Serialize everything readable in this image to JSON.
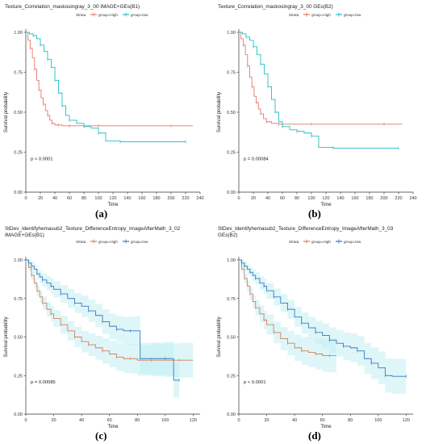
{
  "chart_data": [
    {
      "type": "line",
      "panel_label": "(a)",
      "title": "Texture_Correlation_maskosingray_3_00 IMAGE+GEs(B1)",
      "xlabel": "Time",
      "ylabel": "Survival probability",
      "legend_title": "Strata",
      "xlim": [
        0,
        240
      ],
      "ylim": [
        0,
        1
      ],
      "xticks": [
        "0",
        "20",
        "40",
        "60",
        "80",
        "100",
        "120",
        "140",
        "160",
        "180",
        "200",
        "220",
        "240"
      ],
      "yticks": [
        "0.00",
        "0.25",
        "0.50",
        "0.75",
        "1.00"
      ],
      "annotation": "p < 0.0001",
      "confidence_band": false,
      "series": [
        {
          "name": "group=High",
          "color": "#e8766c",
          "x": [
            0,
            3,
            6,
            9,
            12,
            15,
            18,
            21,
            24,
            27,
            30,
            33,
            36,
            40,
            45,
            50,
            60,
            75,
            100,
            150,
            200,
            230
          ],
          "y": [
            1.0,
            0.95,
            0.9,
            0.84,
            0.77,
            0.7,
            0.64,
            0.59,
            0.55,
            0.51,
            0.48,
            0.45,
            0.43,
            0.42,
            0.42,
            0.415,
            0.415,
            0.415,
            0.415,
            0.415,
            0.415,
            0.415
          ]
        },
        {
          "name": "group=low",
          "color": "#22bec5",
          "x": [
            0,
            5,
            10,
            15,
            20,
            25,
            30,
            35,
            40,
            45,
            50,
            55,
            60,
            70,
            80,
            90,
            100,
            110,
            130,
            180,
            220
          ],
          "y": [
            1.0,
            0.99,
            0.98,
            0.96,
            0.92,
            0.88,
            0.83,
            0.78,
            0.7,
            0.62,
            0.54,
            0.48,
            0.45,
            0.43,
            0.41,
            0.4,
            0.37,
            0.32,
            0.315,
            0.315,
            0.315
          ]
        }
      ]
    },
    {
      "type": "line",
      "panel_label": "(b)",
      "title": "Texture_Correlation_maskosingray_3_00 GEs(B2)",
      "xlabel": "Time",
      "ylabel": "Survival probability",
      "legend_title": "Strata",
      "xlim": [
        0,
        240
      ],
      "ylim": [
        0,
        1
      ],
      "xticks": [
        "0",
        "20",
        "40",
        "60",
        "80",
        "100",
        "120",
        "140",
        "160",
        "180",
        "200",
        "220",
        "240"
      ],
      "yticks": [
        "0.00",
        "0.25",
        "0.50",
        "0.75",
        "1.00"
      ],
      "annotation": "p = 0.00084",
      "confidence_band": false,
      "series": [
        {
          "name": "group=High",
          "color": "#e8766c",
          "x": [
            0,
            3,
            6,
            9,
            12,
            15,
            18,
            21,
            24,
            27,
            30,
            34,
            38,
            45,
            55,
            70,
            100,
            150,
            200,
            225
          ],
          "y": [
            1.0,
            0.96,
            0.92,
            0.86,
            0.79,
            0.72,
            0.66,
            0.6,
            0.56,
            0.52,
            0.49,
            0.46,
            0.44,
            0.43,
            0.425,
            0.425,
            0.425,
            0.425,
            0.425,
            0.425
          ]
        },
        {
          "name": "group=low",
          "color": "#22bec5",
          "x": [
            0,
            5,
            10,
            15,
            20,
            25,
            30,
            35,
            40,
            45,
            50,
            55,
            60,
            70,
            80,
            90,
            100,
            110,
            130,
            180,
            220
          ],
          "y": [
            1.0,
            0.99,
            0.97,
            0.95,
            0.91,
            0.86,
            0.8,
            0.74,
            0.66,
            0.58,
            0.5,
            0.44,
            0.41,
            0.39,
            0.38,
            0.37,
            0.35,
            0.28,
            0.275,
            0.275,
            0.275
          ]
        }
      ]
    },
    {
      "type": "line",
      "panel_label": "(c)",
      "title": "StDev_Identifyhemasub2_Texture_DifferenceEntropy_ImageAfterMath_3_02 IMAGE+GEs(B1)",
      "title_lines": [
        "StDev_Identifyhemasub2_Texture_DifferenceEntropy_ImageAfterMath_3_02",
        "IMAGE+GEs(B1)"
      ],
      "xlabel": "Time",
      "ylabel": "Survival probability",
      "legend_title": "Strata",
      "xlim": [
        0,
        125
      ],
      "ylim": [
        0,
        1
      ],
      "xticks": [
        "0",
        "20",
        "40",
        "60",
        "80",
        "100",
        "120"
      ],
      "yticks": [
        "0.00",
        "0.25",
        "0.50",
        "0.75",
        "1.00"
      ],
      "annotation": "p = 0.00085",
      "confidence_band": true,
      "series": [
        {
          "name": "group=High",
          "color": "#d2805a",
          "x": [
            0,
            2,
            4,
            6,
            8,
            10,
            12,
            15,
            18,
            20,
            25,
            30,
            35,
            40,
            45,
            50,
            55,
            60,
            65,
            70,
            75,
            80,
            90,
            100,
            110,
            120
          ],
          "y": [
            1.0,
            0.95,
            0.9,
            0.85,
            0.8,
            0.76,
            0.72,
            0.68,
            0.65,
            0.62,
            0.58,
            0.54,
            0.5,
            0.47,
            0.45,
            0.43,
            0.41,
            0.39,
            0.37,
            0.36,
            0.36,
            0.35,
            0.35,
            0.35,
            0.35,
            0.35
          ]
        },
        {
          "name": "group=low",
          "color": "#3c78be",
          "x": [
            0,
            2,
            4,
            6,
            8,
            10,
            12,
            15,
            18,
            20,
            25,
            30,
            35,
            40,
            45,
            50,
            55,
            60,
            65,
            70,
            75,
            80,
            82,
            90,
            100,
            106,
            110
          ],
          "y": [
            1.0,
            0.98,
            0.96,
            0.94,
            0.91,
            0.89,
            0.87,
            0.85,
            0.83,
            0.81,
            0.78,
            0.75,
            0.72,
            0.7,
            0.67,
            0.64,
            0.6,
            0.57,
            0.55,
            0.54,
            0.54,
            0.54,
            0.36,
            0.36,
            0.36,
            0.22,
            0.22
          ]
        }
      ]
    },
    {
      "type": "line",
      "panel_label": "(d)",
      "title": "StDev_Identifyhemasub2_Texture_DifferenceEntropy_ImageAfterMath_3_03 GEs(B2)",
      "title_lines": [
        "StDev_Identifyhemasub2_Texture_DifferenceEntropy_ImageAfterMath_3_03",
        "GEs(B2)"
      ],
      "xlabel": "Time",
      "ylabel": "Survival probability",
      "legend_title": "Strata",
      "xlim": [
        0,
        125
      ],
      "ylim": [
        0,
        1
      ],
      "xticks": [
        "0",
        "20",
        "40",
        "60",
        "80",
        "100",
        "120"
      ],
      "yticks": [
        "0.00",
        "0.25",
        "0.50",
        "0.75",
        "1.00"
      ],
      "annotation": "p < 0.0001",
      "confidence_band": true,
      "series": [
        {
          "name": "group=High",
          "color": "#d2805a",
          "x": [
            0,
            2,
            4,
            6,
            8,
            10,
            12,
            15,
            18,
            20,
            25,
            30,
            35,
            40,
            45,
            50,
            55,
            60,
            65,
            70
          ],
          "y": [
            1.0,
            0.94,
            0.88,
            0.83,
            0.78,
            0.73,
            0.69,
            0.65,
            0.61,
            0.58,
            0.53,
            0.49,
            0.46,
            0.43,
            0.41,
            0.4,
            0.39,
            0.38,
            0.38,
            0.38
          ]
        },
        {
          "name": "group=low",
          "color": "#3c78be",
          "x": [
            0,
            2,
            4,
            6,
            8,
            10,
            12,
            15,
            18,
            20,
            25,
            30,
            35,
            40,
            45,
            50,
            55,
            60,
            65,
            70,
            75,
            80,
            85,
            90,
            95,
            100,
            105,
            110,
            120
          ],
          "y": [
            1.0,
            0.98,
            0.96,
            0.94,
            0.92,
            0.9,
            0.88,
            0.85,
            0.83,
            0.8,
            0.76,
            0.72,
            0.68,
            0.63,
            0.59,
            0.56,
            0.53,
            0.51,
            0.48,
            0.46,
            0.44,
            0.43,
            0.41,
            0.36,
            0.33,
            0.3,
            0.25,
            0.245,
            0.245
          ]
        }
      ]
    }
  ]
}
